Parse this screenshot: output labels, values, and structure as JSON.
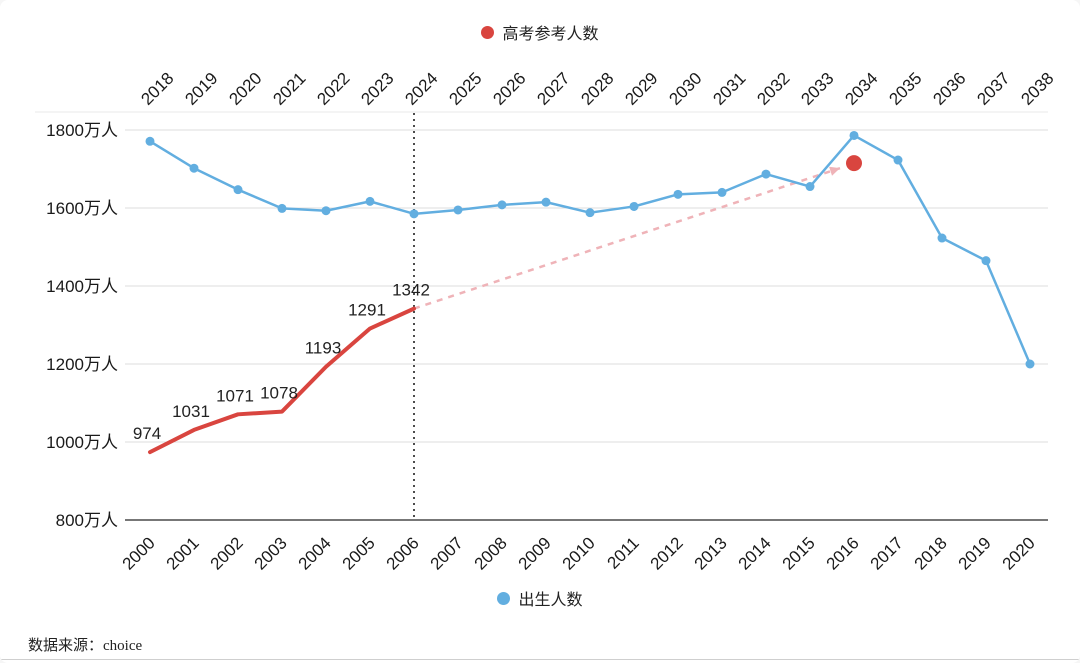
{
  "legend_top": {
    "label": "高考参考人数",
    "color": "#d9453f"
  },
  "legend_bottom": {
    "label": "出生人数",
    "color": "#62aee0"
  },
  "footer": {
    "source": "数据来源：choice"
  },
  "chart_data": {
    "type": "line",
    "title": "",
    "top_axis": {
      "years": [
        "2018",
        "2019",
        "2020",
        "2021",
        "2022",
        "2023",
        "2024",
        "2025",
        "2026",
        "2027",
        "2028",
        "2029",
        "2030",
        "2031",
        "2032",
        "2033",
        "2034",
        "2035",
        "2036",
        "2037",
        "2038"
      ]
    },
    "bottom_axis": {
      "years": [
        "2000",
        "2001",
        "2002",
        "2003",
        "2004",
        "2005",
        "2006",
        "2007",
        "2008",
        "2009",
        "2010",
        "2011",
        "2012",
        "2013",
        "2014",
        "2015",
        "2016",
        "2017",
        "2018",
        "2019",
        "2020"
      ]
    },
    "y_axis": {
      "min": 800,
      "max": 1800,
      "ticks": [
        1800,
        1600,
        1400,
        1200,
        1000,
        800
      ],
      "suffix": "万人"
    },
    "grid": true,
    "legend_position": "top-and-bottom",
    "series": [
      {
        "name": "出生人数",
        "color": "#62aee0",
        "marker": "circle",
        "line_width": 2.5,
        "years": [
          2000,
          2001,
          2002,
          2003,
          2004,
          2005,
          2006,
          2007,
          2008,
          2009,
          2010,
          2011,
          2012,
          2013,
          2014,
          2015,
          2016,
          2017,
          2018,
          2019,
          2020
        ],
        "values": [
          1771,
          1702,
          1647,
          1599,
          1593,
          1617,
          1585,
          1595,
          1608,
          1615,
          1588,
          1604,
          1635,
          1640,
          1687,
          1655,
          1786,
          1723,
          1523,
          1465,
          1200
        ]
      },
      {
        "name": "高考参考人数",
        "color": "#d9453f",
        "marker": "none",
        "line_width": 4,
        "show_labels": true,
        "years": [
          2000,
          2001,
          2002,
          2003,
          2004,
          2005,
          2006
        ],
        "values": [
          974,
          1031,
          1071,
          1078,
          1193,
          1291,
          1342
        ]
      }
    ],
    "projection": {
      "from_year": 2006,
      "from_value": 1342,
      "to_year": 2016,
      "to_value": 1715,
      "color": "#efb3b8",
      "dash": "6 6"
    },
    "highlight_point": {
      "year": 2016,
      "value": 1715,
      "color": "#d9453f",
      "radius": 8
    },
    "vline": {
      "year": 2006,
      "color": "#111111",
      "dash": "2 4"
    }
  }
}
